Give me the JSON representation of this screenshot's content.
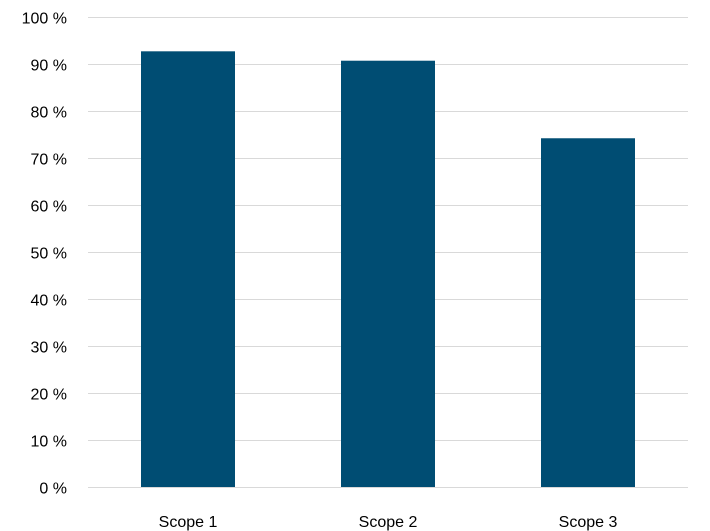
{
  "chart_data": {
    "type": "bar",
    "title": "",
    "xlabel": "",
    "ylabel": "",
    "categories": [
      "Scope 1",
      "Scope 2",
      "Scope 3"
    ],
    "series": [
      {
        "values": [
          92.7,
          90.7,
          74.2
        ]
      }
    ],
    "ylim": [
      0,
      100
    ],
    "yticks": [
      0,
      10,
      20,
      30,
      40,
      50,
      60,
      70,
      80,
      90,
      100
    ],
    "ytick_labels": [
      "0 %",
      "10 %",
      "20 %",
      "30 %",
      "40 %",
      "50 %",
      "60 %",
      "70 %",
      "80 %",
      "90 %",
      "100 %"
    ],
    "grid": true,
    "legend": "none",
    "colors": {
      "bar": "#004d73",
      "grid": "#d9d9d9"
    }
  }
}
